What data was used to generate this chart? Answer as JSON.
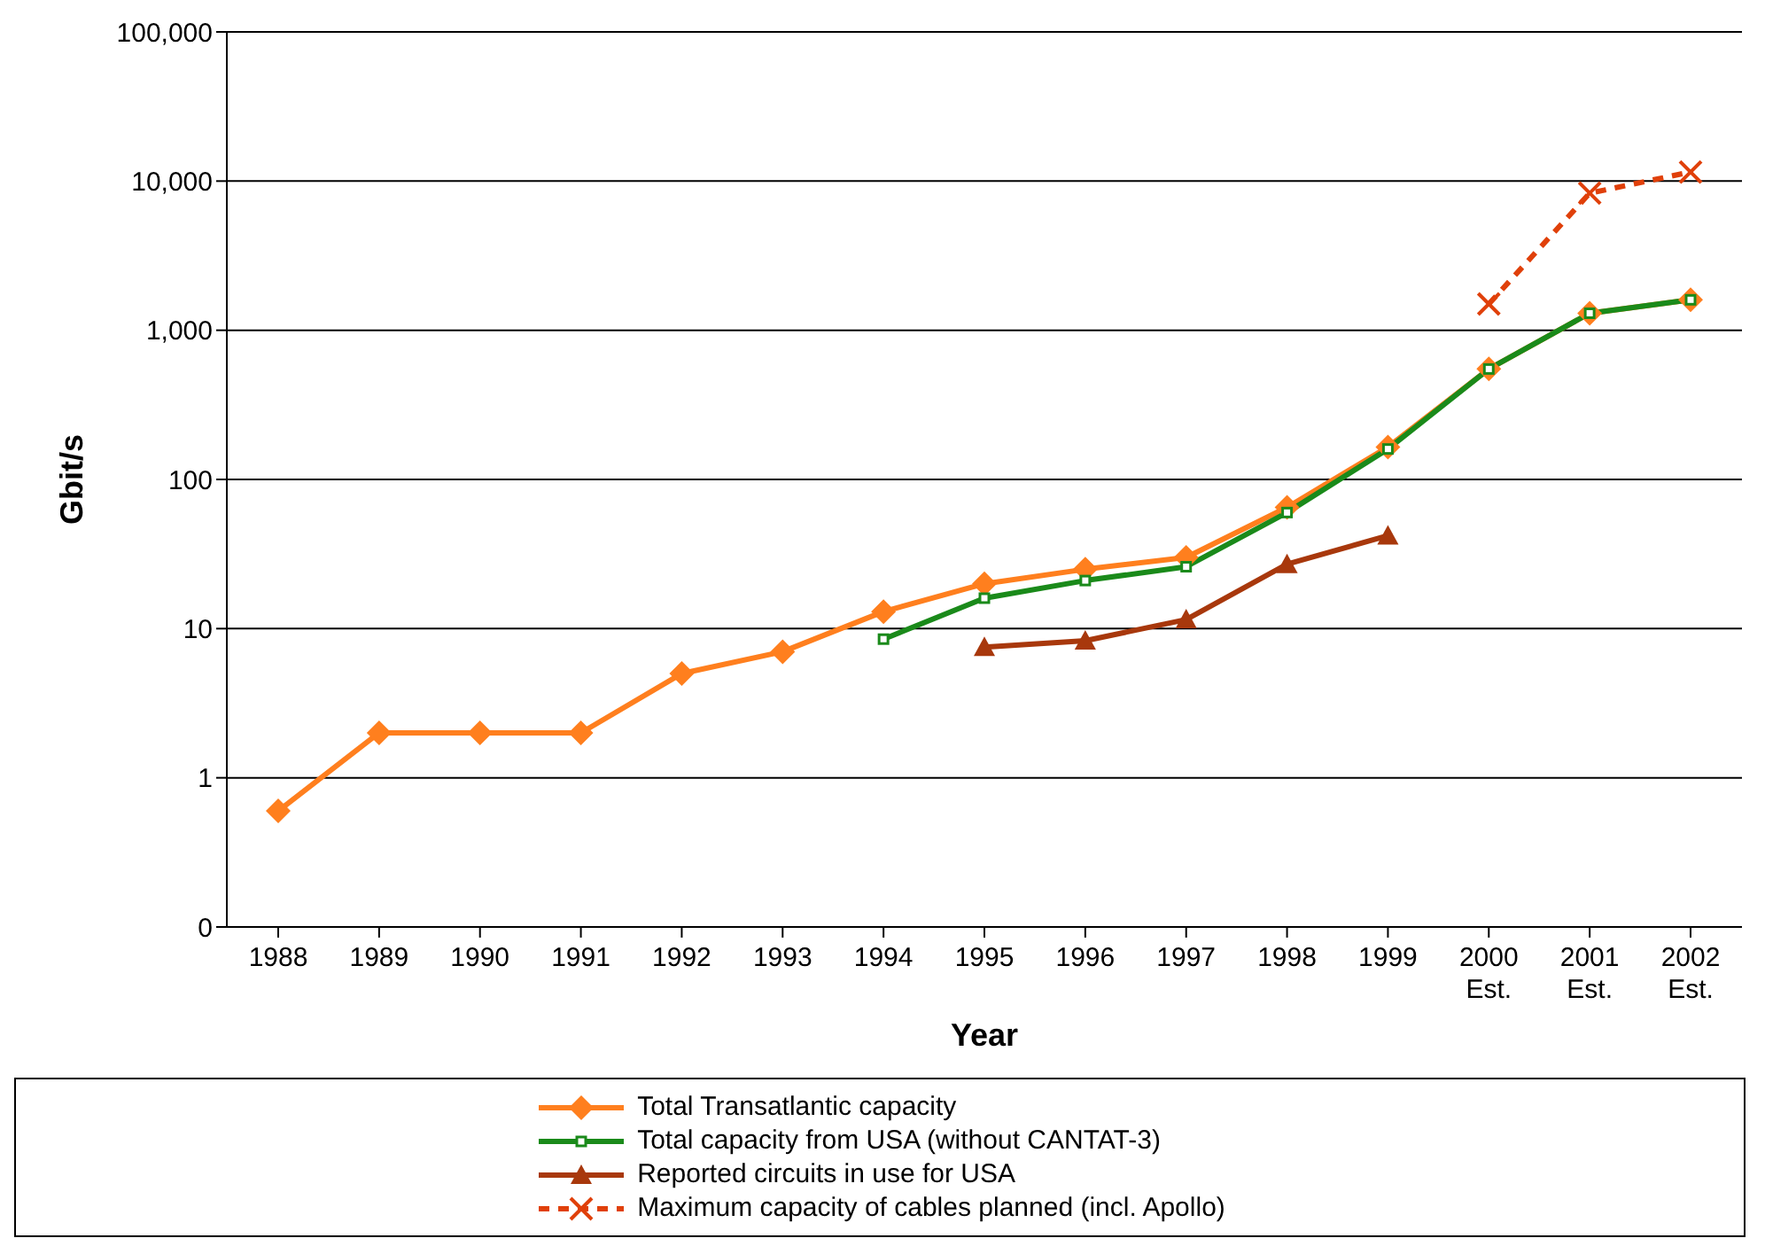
{
  "chart_data": {
    "type": "line",
    "xlabel": "Year",
    "ylabel": "Gbit/s",
    "categories": [
      "1988",
      "1989",
      "1990",
      "1991",
      "1992",
      "1993",
      "1994",
      "1995",
      "1996",
      "1997",
      "1998",
      "1999",
      "2000 Est.",
      "2001 Est.",
      "2002 Est."
    ],
    "series": [
      {
        "name": "Total Transatlantic capacity",
        "color": "#ff7f1e",
        "marker": "diamond",
        "values": [
          0.6,
          2,
          2,
          2,
          5,
          7,
          13,
          20,
          25,
          30,
          65,
          165,
          550,
          1300,
          1600
        ]
      },
      {
        "name": "Total capacity from USA (without CANTAT-3)",
        "color": "#1a8a1a",
        "marker": "square",
        "values": [
          null,
          null,
          null,
          null,
          null,
          null,
          8.5,
          16,
          21,
          26,
          60,
          160,
          550,
          1300,
          1600
        ]
      },
      {
        "name": "Reported circuits in use for USA",
        "color": "#a8380c",
        "marker": "triangle",
        "values": [
          null,
          null,
          null,
          null,
          null,
          null,
          null,
          7.5,
          8.3,
          11.5,
          27,
          42,
          null,
          null,
          null
        ]
      },
      {
        "name": "Maximum capacity of cables planned (incl. Apollo)",
        "color": "#e0400a",
        "marker": "cross",
        "line_style": "dashed",
        "values": [
          null,
          null,
          null,
          null,
          null,
          null,
          null,
          null,
          null,
          null,
          null,
          null,
          1500,
          8300,
          11500
        ]
      }
    ],
    "log": "y",
    "ylim": [
      0.1,
      100000
    ],
    "yticks": [
      {
        "value": 0.1,
        "label": "0"
      },
      {
        "value": 1,
        "label": "1"
      },
      {
        "value": 10,
        "label": "10"
      },
      {
        "value": 100,
        "label": "100"
      },
      {
        "value": 1000,
        "label": "1,000"
      },
      {
        "value": 10000,
        "label": "10,000"
      },
      {
        "value": 100000,
        "label": "100,000"
      }
    ],
    "grid": "y",
    "legend": "bottom"
  }
}
